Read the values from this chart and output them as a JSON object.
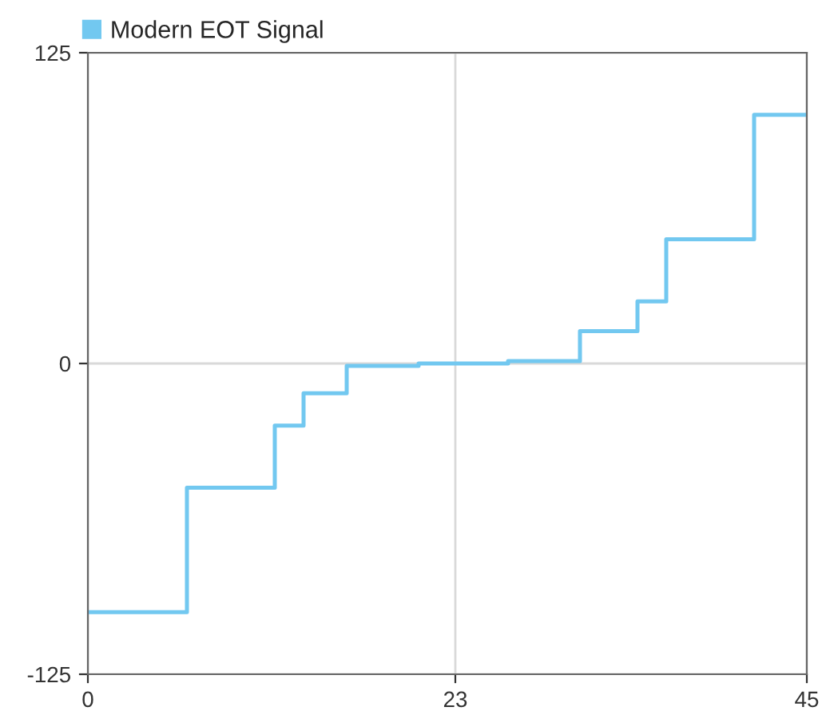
{
  "chart_data": {
    "type": "step",
    "x": [
      0,
      6.2,
      11.7,
      13.5,
      16.2,
      20.7,
      26.3,
      30.8,
      34.4,
      36.2,
      41.7,
      45
    ],
    "series": [
      {
        "name": "Modern EOT Signal",
        "color": "#72c8f0",
        "values": [
          -100,
          -50,
          -25,
          -12,
          -1,
          0,
          1,
          13,
          25,
          50,
          100,
          100
        ]
      }
    ],
    "xlim": [
      0,
      45
    ],
    "xticks": [
      0,
      23,
      45
    ],
    "ylim": [
      -125,
      125
    ],
    "yticks": [
      -125,
      0,
      125
    ],
    "grid": true,
    "legend": "top left"
  }
}
